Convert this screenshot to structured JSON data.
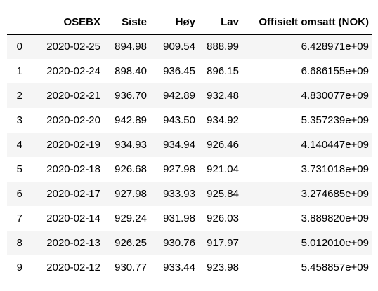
{
  "table": {
    "columns": [
      "",
      "OSEBX",
      "Siste",
      "Høy",
      "Lav",
      "Offisielt omsatt (NOK)"
    ],
    "rows": [
      {
        "index": "0",
        "osebx": "2020-02-25",
        "siste": "894.98",
        "hoy": "909.54",
        "lav": "888.99",
        "omsatt": "6.428971e+09"
      },
      {
        "index": "1",
        "osebx": "2020-02-24",
        "siste": "898.40",
        "hoy": "936.45",
        "lav": "896.15",
        "omsatt": "6.686155e+09"
      },
      {
        "index": "2",
        "osebx": "2020-02-21",
        "siste": "936.70",
        "hoy": "942.89",
        "lav": "932.48",
        "omsatt": "4.830077e+09"
      },
      {
        "index": "3",
        "osebx": "2020-02-20",
        "siste": "942.89",
        "hoy": "943.50",
        "lav": "934.92",
        "omsatt": "5.357239e+09"
      },
      {
        "index": "4",
        "osebx": "2020-02-19",
        "siste": "934.93",
        "hoy": "934.94",
        "lav": "926.46",
        "omsatt": "4.140447e+09"
      },
      {
        "index": "5",
        "osebx": "2020-02-18",
        "siste": "926.68",
        "hoy": "927.98",
        "lav": "921.04",
        "omsatt": "3.731018e+09"
      },
      {
        "index": "6",
        "osebx": "2020-02-17",
        "siste": "927.98",
        "hoy": "933.93",
        "lav": "925.84",
        "omsatt": "3.274685e+09"
      },
      {
        "index": "7",
        "osebx": "2020-02-14",
        "siste": "929.24",
        "hoy": "931.98",
        "lav": "926.03",
        "omsatt": "3.889820e+09"
      },
      {
        "index": "8",
        "osebx": "2020-02-13",
        "siste": "926.25",
        "hoy": "930.76",
        "lav": "917.97",
        "omsatt": "5.012010e+09"
      },
      {
        "index": "9",
        "osebx": "2020-02-12",
        "siste": "930.77",
        "hoy": "933.44",
        "lav": "923.98",
        "omsatt": "5.458857e+09"
      }
    ]
  }
}
